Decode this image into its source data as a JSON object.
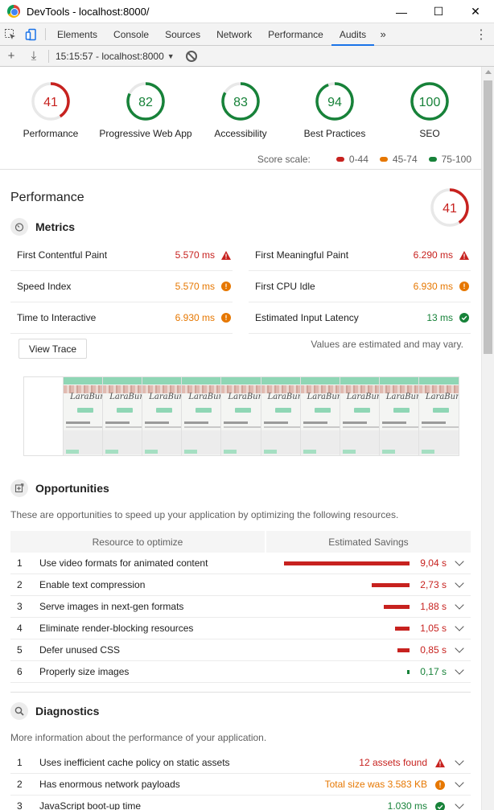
{
  "window": {
    "title": "DevTools - localhost:8000/",
    "minimize": "—",
    "maximize": "☐",
    "close": "✕"
  },
  "tabs": [
    {
      "label": "Elements"
    },
    {
      "label": "Console"
    },
    {
      "label": "Sources"
    },
    {
      "label": "Network"
    },
    {
      "label": "Performance"
    },
    {
      "label": "Audits",
      "active": true
    }
  ],
  "tab_more": "»",
  "subbar": {
    "add": "+",
    "download": "⤓",
    "report_select": "15:15:57 - localhost:8000",
    "caret": "▼"
  },
  "gauges": [
    {
      "label": "Performance",
      "score": 41,
      "color": "#c7221f"
    },
    {
      "label": "Progressive Web App",
      "score": 82,
      "color": "#178239"
    },
    {
      "label": "Accessibility",
      "score": 83,
      "color": "#178239"
    },
    {
      "label": "Best Practices",
      "score": 94,
      "color": "#178239"
    },
    {
      "label": "SEO",
      "score": 100,
      "color": "#178239"
    }
  ],
  "scale": {
    "label": "Score scale:",
    "items": [
      {
        "range": "0-44",
        "color": "#c7221f"
      },
      {
        "range": "45-74",
        "color": "#e67700"
      },
      {
        "range": "75-100",
        "color": "#178239"
      }
    ]
  },
  "performance": {
    "title": "Performance",
    "score": 41,
    "metrics_title": "Metrics",
    "metrics": [
      {
        "name": "First Contentful Paint",
        "value": "5.570 ms",
        "status": "fail"
      },
      {
        "name": "First Meaningful Paint",
        "value": "6.290 ms",
        "status": "fail"
      },
      {
        "name": "Speed Index",
        "value": "5.570 ms",
        "status": "average"
      },
      {
        "name": "First CPU Idle",
        "value": "6.930 ms",
        "status": "average"
      },
      {
        "name": "Time to Interactive",
        "value": "6.930 ms",
        "status": "average"
      },
      {
        "name": "Estimated Input Latency",
        "value": "13 ms",
        "status": "pass"
      }
    ],
    "view_trace": "View Trace",
    "values_note": "Values are estimated and may vary.",
    "filmstrip_logo": "LaraBun"
  },
  "opportunities": {
    "title": "Opportunities",
    "description": "These are opportunities to speed up your application by optimizing the following resources.",
    "col_resource": "Resource to optimize",
    "col_savings": "Estimated Savings",
    "max_seconds": 9.04,
    "rows": [
      {
        "index": "1",
        "name": "Use video formats for animated content",
        "savings": "9,04 s",
        "seconds": 9.04,
        "color": "#c7221f"
      },
      {
        "index": "2",
        "name": "Enable text compression",
        "savings": "2,73 s",
        "seconds": 2.73,
        "color": "#c7221f"
      },
      {
        "index": "3",
        "name": "Serve images in next-gen formats",
        "savings": "1,88 s",
        "seconds": 1.88,
        "color": "#c7221f"
      },
      {
        "index": "4",
        "name": "Eliminate render-blocking resources",
        "savings": "1,05 s",
        "seconds": 1.05,
        "color": "#c7221f"
      },
      {
        "index": "5",
        "name": "Defer unused CSS",
        "savings": "0,85 s",
        "seconds": 0.85,
        "color": "#c7221f"
      },
      {
        "index": "6",
        "name": "Properly size images",
        "savings": "0,17 s",
        "seconds": 0.17,
        "color": "#178239"
      }
    ]
  },
  "diagnostics": {
    "title": "Diagnostics",
    "description": "More information about the performance of your application.",
    "rows": [
      {
        "index": "1",
        "name": "Uses inefficient cache policy on static assets",
        "value": "12 assets found",
        "status": "fail",
        "color": "#c7221f"
      },
      {
        "index": "2",
        "name": "Has enormous network payloads",
        "value": "Total size was 3.583 KB",
        "status": "average",
        "color": "#e67700"
      },
      {
        "index": "3",
        "name": "JavaScript boot-up time",
        "value": "1.030 ms",
        "status": "pass",
        "color": "#178239"
      }
    ]
  }
}
